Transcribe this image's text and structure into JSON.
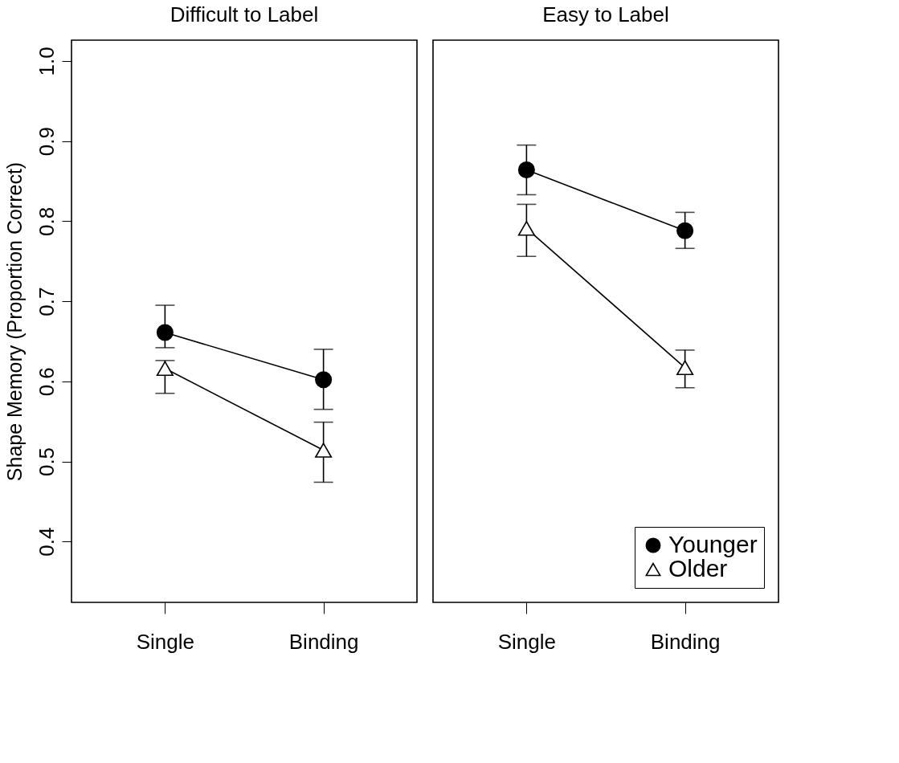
{
  "chart_data": [
    {
      "type": "line",
      "title": "Difficult to Label",
      "ylabel": "Shape Memory (Proportion Correct)",
      "categories": [
        "Single",
        "Binding"
      ],
      "ylim": [
        0.324,
        1.026
      ],
      "yticks": [
        0.4,
        0.5,
        0.6,
        0.7,
        0.8,
        0.9,
        {
          "value": 1.0,
          "label": "1.0"
        }
      ],
      "grid": false,
      "legend": false,
      "line_style": "solid",
      "series": [
        {
          "color": "#000000",
          "marker": "circle",
          "values": [
            0.661,
            0.602
          ],
          "errors": [
            [
              0.642,
              0.695
            ],
            [
              0.565,
              0.64
            ]
          ]
        },
        {
          "color": "#000000",
          "marker": "triangle",
          "values": [
            0.616,
            0.514
          ],
          "errors": [
            [
              0.585,
              0.626
            ],
            [
              0.474,
              0.549
            ]
          ]
        }
      ]
    },
    {
      "type": "line",
      "title": "Easy to Label",
      "categories": [
        "Single",
        "Binding"
      ],
      "ylim": [
        0.324,
        1.026
      ],
      "tick_labels": "x",
      "grid": false,
      "legend": "bottom right",
      "line_style": "solid",
      "series": [
        {
          "name": "Younger",
          "color": "#000000",
          "marker": "circle",
          "values": [
            0.864,
            0.788
          ],
          "errors": [
            [
              0.833,
              0.895
            ],
            [
              0.766,
              0.811
            ]
          ]
        },
        {
          "name": "Older",
          "color": "#000000",
          "marker": "triangle",
          "values": [
            0.791,
            0.617
          ],
          "errors": [
            [
              0.756,
              0.821
            ],
            [
              0.592,
              0.639
            ]
          ]
        }
      ]
    }
  ]
}
